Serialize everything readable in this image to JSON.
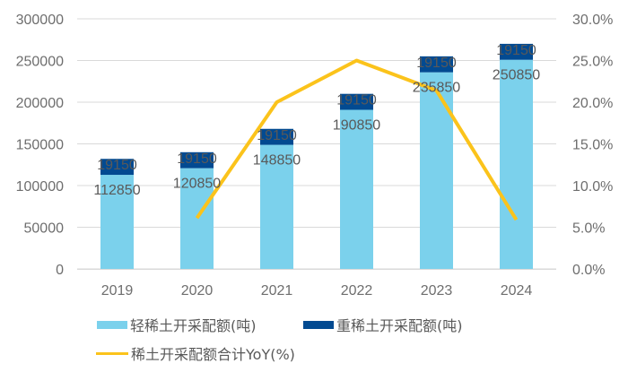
{
  "chart_data": {
    "type": "bar",
    "subtype": "stacked-bar-with-line",
    "title": "",
    "categories": [
      "2019",
      "2020",
      "2021",
      "2022",
      "2023",
      "2024"
    ],
    "series": [
      {
        "name": "轻稀土开采配额(吨)",
        "type": "bar",
        "axis": "left",
        "color": "#7bd1ec",
        "values": [
          112850,
          120850,
          148850,
          190850,
          235850,
          250850
        ],
        "labels": [
          "112850",
          "120850",
          "148850",
          "190850",
          "235850",
          "250850"
        ]
      },
      {
        "name": "重稀土开采配额(吨)",
        "type": "bar",
        "axis": "left",
        "color": "#024a91",
        "values": [
          19150,
          19150,
          19150,
          19150,
          19150,
          19150
        ],
        "labels": [
          "19150",
          "19150",
          "19150",
          "19150",
          "19150",
          "19150"
        ]
      },
      {
        "name": "稀土开采配额合计YoY(%)",
        "type": "line",
        "axis": "right",
        "color": "#fbc31b",
        "values": [
          null,
          6.1,
          20.0,
          25.0,
          21.4,
          5.9
        ]
      }
    ],
    "y_left": {
      "range": [
        0,
        300000
      ],
      "ticks": [
        "0",
        "50000",
        "100000",
        "150000",
        "200000",
        "250000",
        "300000"
      ],
      "tick_values": [
        0,
        50000,
        100000,
        150000,
        200000,
        250000,
        300000
      ]
    },
    "y_right": {
      "range": [
        0,
        30
      ],
      "ticks": [
        "0.0%",
        "5.0%",
        "10.0%",
        "15.0%",
        "20.0%",
        "25.0%",
        "30.0%"
      ],
      "tick_values": [
        0,
        5,
        10,
        15,
        20,
        25,
        30
      ]
    },
    "xlabel": "",
    "ylabel": "",
    "grid": true,
    "legend_position": "bottom"
  },
  "colors": {
    "grid": "#d9d9d9",
    "tick_text": "#6e6e6e",
    "label_text": "#595959"
  }
}
